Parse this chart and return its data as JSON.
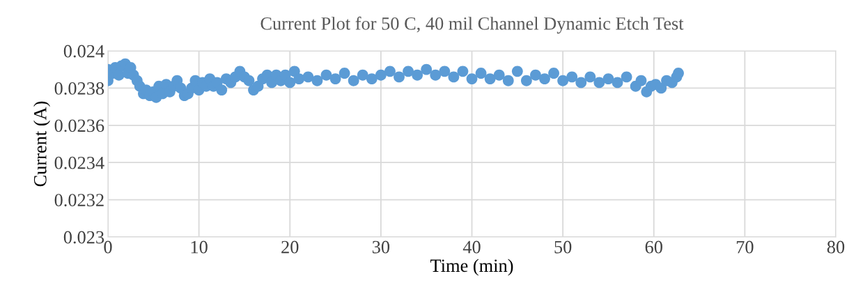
{
  "chart_data": {
    "type": "scatter",
    "title": "Current Plot for 50 C, 40 mil Channel Dynamic Etch Test",
    "xlabel": "Time (min)",
    "ylabel": "Current (A)",
    "series": [
      {
        "color": "#5b9bd5",
        "x": [
          0,
          0,
          0.5,
          0.8,
          1.2,
          1.5,
          1.9,
          2.2,
          2.5,
          2.8,
          3.2,
          3.5,
          3.9,
          4.2,
          4.6,
          5.0,
          5.3,
          5.6,
          6.0,
          6.4,
          6.8,
          7.2,
          7.6,
          8.0,
          8.4,
          8.8,
          9.2,
          9.6,
          10.0,
          10.4,
          10.8,
          11.2,
          11.6,
          12.0,
          12.5,
          13.0,
          13.5,
          14.0,
          14.5,
          15.0,
          15.5,
          16.0,
          16.5,
          17.0,
          17.5,
          18.0,
          18.5,
          19.0,
          19.5,
          20.0,
          20.5,
          21.0,
          22.0,
          23.0,
          24.0,
          25.0,
          26.0,
          27.0,
          28.0,
          29.0,
          30.0,
          31.0,
          32.0,
          33.0,
          34.0,
          35.0,
          36.0,
          37.0,
          38.0,
          39.0,
          40.0,
          41.0,
          42.0,
          43.0,
          44.0,
          45.0,
          46.0,
          47.0,
          48.0,
          49.0,
          50.0,
          51.0,
          52.0,
          53.0,
          54.0,
          55.0,
          56.0,
          57.0,
          58.0,
          58.6,
          59.2,
          59.7,
          60.2,
          60.8,
          61.4,
          62.0,
          62.5,
          62.7
        ],
        "values": [
          0.0239,
          0.02384,
          0.02388,
          0.02391,
          0.02387,
          0.02392,
          0.02393,
          0.02388,
          0.02391,
          0.02387,
          0.02384,
          0.02381,
          0.02377,
          0.02379,
          0.02376,
          0.02378,
          0.02375,
          0.02381,
          0.02377,
          0.02382,
          0.02378,
          0.02381,
          0.02384,
          0.0238,
          0.02376,
          0.02377,
          0.0238,
          0.02384,
          0.02379,
          0.02383,
          0.02381,
          0.02385,
          0.02381,
          0.02383,
          0.02379,
          0.02385,
          0.02383,
          0.02386,
          0.02389,
          0.02386,
          0.02384,
          0.02379,
          0.02381,
          0.02385,
          0.02387,
          0.02383,
          0.02387,
          0.02384,
          0.02387,
          0.02383,
          0.02389,
          0.02385,
          0.02386,
          0.02384,
          0.02387,
          0.02385,
          0.02388,
          0.02384,
          0.02387,
          0.02385,
          0.02387,
          0.02389,
          0.02386,
          0.02389,
          0.02387,
          0.0239,
          0.02387,
          0.02389,
          0.02386,
          0.02389,
          0.02385,
          0.02388,
          0.02385,
          0.02387,
          0.02384,
          0.02389,
          0.02384,
          0.02387,
          0.02385,
          0.02388,
          0.02384,
          0.02386,
          0.02383,
          0.02386,
          0.02383,
          0.02385,
          0.02383,
          0.02386,
          0.02381,
          0.02384,
          0.02378,
          0.02381,
          0.02382,
          0.0238,
          0.02384,
          0.02383,
          0.02386,
          0.02388
        ]
      }
    ],
    "xlim": [
      0,
      80
    ],
    "xticks": [
      0,
      10,
      20,
      30,
      40,
      50,
      60,
      70,
      80
    ],
    "ylim": [
      0.023,
      0.024
    ],
    "yticks": [
      {
        "value": 0.023,
        "label": "0.023"
      },
      {
        "value": 0.0232,
        "label": "0.0232"
      },
      {
        "value": 0.0234,
        "label": "0.0234"
      },
      {
        "value": 0.0236,
        "label": "0.0236"
      },
      {
        "value": 0.0238,
        "label": "0.0238"
      },
      {
        "value": 0.024,
        "label": "0.024"
      }
    ],
    "grid": true,
    "marker": "circle"
  }
}
